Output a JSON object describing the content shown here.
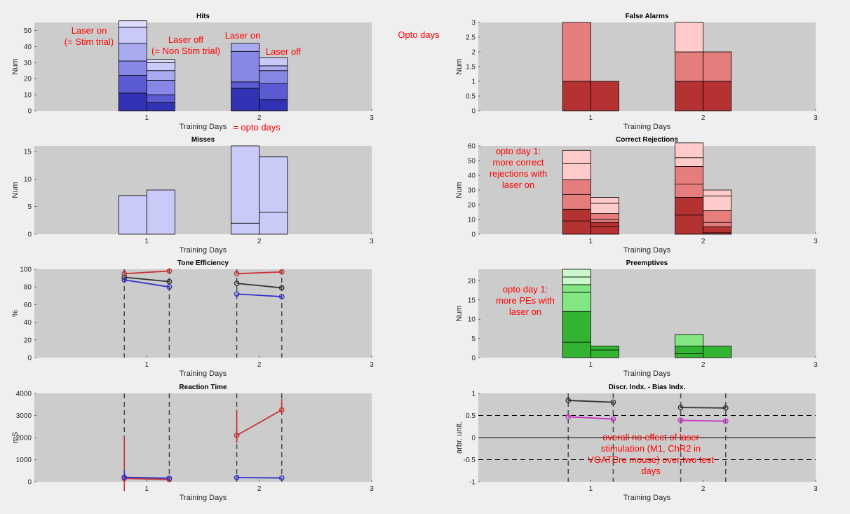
{
  "chart_data": [
    {
      "type": "bar",
      "id": "hits",
      "title": "Hits",
      "xlabel": "Training Days",
      "ylabel": "Num",
      "xlim": [
        0,
        3
      ],
      "ylim": [
        0,
        55
      ],
      "xticks": [
        1,
        2,
        3
      ],
      "yticks": [
        0,
        10,
        20,
        30,
        40,
        50
      ],
      "palette": [
        "#3232b4",
        "#5a5ad2",
        "#8787e6",
        "#aaaaf0",
        "#cacaf8",
        "#dedefc"
      ],
      "bars": [
        {
          "x": 0.875,
          "stack": [
            11,
            11,
            9,
            11,
            10,
            4
          ]
        },
        {
          "x": 1.125,
          "stack": [
            5,
            5,
            9,
            6,
            5,
            2
          ]
        },
        {
          "x": 1.875,
          "stack": [
            14,
            4,
            19,
            5
          ]
        },
        {
          "x": 2.125,
          "stack": [
            7,
            10,
            8,
            3,
            5
          ]
        }
      ]
    },
    {
      "type": "bar",
      "id": "false-alarms",
      "title": "False Alarms",
      "xlabel": "Training Days",
      "ylabel": "Num",
      "xlim": [
        0,
        3
      ],
      "ylim": [
        0,
        3
      ],
      "xticks": [
        1,
        2,
        3
      ],
      "yticks": [
        0,
        0.5,
        1,
        1.5,
        2,
        2.5,
        3
      ],
      "palette": [
        "#b43232",
        "#e67d7d",
        "#ffcaca"
      ],
      "bars": [
        {
          "x": 0.875,
          "stack": [
            1,
            2
          ]
        },
        {
          "x": 1.125,
          "stack": [
            1
          ]
        },
        {
          "x": 1.875,
          "stack": [
            1,
            1,
            1
          ]
        },
        {
          "x": 2.125,
          "stack": [
            1,
            1
          ]
        }
      ]
    },
    {
      "type": "bar",
      "id": "misses",
      "title": "Misses",
      "xlabel": "Training Days",
      "ylabel": "Num",
      "xlim": [
        0,
        3
      ],
      "ylim": [
        0,
        16
      ],
      "xticks": [
        1,
        2,
        3
      ],
      "yticks": [
        0,
        5,
        10,
        15
      ],
      "palette": [
        "#cacaf8",
        "#cacaf8"
      ],
      "bars": [
        {
          "x": 0.875,
          "stack": [
            7
          ]
        },
        {
          "x": 1.125,
          "stack": [
            8
          ]
        },
        {
          "x": 1.875,
          "stack": [
            2,
            14
          ]
        },
        {
          "x": 2.125,
          "stack": [
            4,
            10
          ]
        }
      ]
    },
    {
      "type": "bar",
      "id": "correct-rejections",
      "title": "Correct Rejections",
      "xlabel": "Training Days",
      "ylabel": "Num",
      "xlim": [
        0,
        3
      ],
      "ylim": [
        0,
        60
      ],
      "xticks": [
        1,
        2,
        3
      ],
      "yticks": [
        0,
        10,
        20,
        30,
        40,
        50,
        60
      ],
      "palette": [
        "#b43232",
        "#b43232",
        "#e67d7d",
        "#e67d7d",
        "#ffcaca",
        "#ffcaca"
      ],
      "bars": [
        {
          "x": 0.875,
          "stack": [
            9,
            8,
            10,
            10,
            11,
            9
          ]
        },
        {
          "x": 1.125,
          "stack": [
            5,
            3,
            2,
            4,
            7,
            4
          ]
        },
        {
          "x": 1.875,
          "stack": [
            13,
            12,
            9,
            12,
            6,
            10
          ]
        },
        {
          "x": 2.125,
          "stack": [
            1,
            4,
            3,
            8,
            10,
            4
          ]
        }
      ]
    },
    {
      "type": "line",
      "id": "tone-efficiency",
      "title": "Tone Efficiency",
      "xlabel": "Training Days",
      "ylabel": "%",
      "xlim": [
        0,
        3
      ],
      "ylim": [
        0,
        100
      ],
      "xticks": [
        1,
        2,
        3
      ],
      "yticks": [
        0,
        20,
        40,
        60,
        80,
        100
      ],
      "vlines": [
        0.8,
        1.2,
        1.8,
        2.2
      ],
      "series": [
        {
          "color": "#c83232",
          "segments": [
            {
              "x": [
                0.8,
                1.2
              ],
              "y": [
                95,
                98
              ]
            },
            {
              "x": [
                1.8,
                2.2
              ],
              "y": [
                95,
                97
              ]
            }
          ]
        },
        {
          "color": "#323232",
          "segments": [
            {
              "x": [
                0.8,
                1.2
              ],
              "y": [
                91,
                86
              ]
            },
            {
              "x": [
                1.8,
                2.2
              ],
              "y": [
                84,
                79
              ]
            }
          ]
        },
        {
          "color": "#3232c8",
          "segments": [
            {
              "x": [
                0.8,
                1.2
              ],
              "y": [
                88,
                80
              ]
            },
            {
              "x": [
                1.8,
                2.2
              ],
              "y": [
                72,
                69
              ]
            }
          ]
        }
      ]
    },
    {
      "type": "bar",
      "id": "preemptives",
      "title": "Preemptives",
      "xlabel": "Training Days",
      "ylabel": "Num",
      "xlim": [
        0,
        3
      ],
      "ylim": [
        0,
        23
      ],
      "xticks": [
        1,
        2,
        3
      ],
      "yticks": [
        0,
        5,
        10,
        15,
        20
      ],
      "palette": [
        "#32b432",
        "#32b432",
        "#82e682",
        "#82e682",
        "#caf8ca",
        "#caf8ca"
      ],
      "bars": [
        {
          "x": 0.875,
          "stack": [
            4,
            8,
            5,
            2,
            2,
            2
          ]
        },
        {
          "x": 1.125,
          "stack": [
            2,
            1
          ]
        },
        {
          "x": 1.875,
          "stack": [
            1,
            2,
            3
          ]
        },
        {
          "x": 2.125,
          "stack": [
            3
          ]
        }
      ]
    },
    {
      "type": "line",
      "id": "reaction-time",
      "title": "Reaction Time",
      "xlabel": "Training Days",
      "ylabel": "mS",
      "xlim": [
        0,
        3
      ],
      "ylim": [
        0,
        4000
      ],
      "xticks": [
        1,
        2,
        3
      ],
      "yticks": [
        0,
        1000,
        2000,
        3000,
        4000
      ],
      "vlines": [
        0.8,
        1.2,
        1.8,
        2.2
      ],
      "series": [
        {
          "color": "#c83232",
          "segments": [
            {
              "x": [
                0.8,
                1.2
              ],
              "y": [
                150,
                100
              ],
              "err": [
                1900,
                0
              ]
            },
            {
              "x": [
                1.8,
                2.2
              ],
              "y": [
                2100,
                3250
              ],
              "err": [
                1150,
                500
              ]
            }
          ]
        },
        {
          "color": "#3232c8",
          "segments": [
            {
              "x": [
                0.8,
                1.2
              ],
              "y": [
                200,
                160
              ],
              "err": [
                300,
                50
              ]
            },
            {
              "x": [
                1.8,
                2.2
              ],
              "y": [
                190,
                170
              ],
              "err": [
                100,
                30
              ]
            }
          ]
        }
      ]
    },
    {
      "type": "line",
      "id": "discr-bias",
      "title": "Discr. Indx. - Bias Indx.",
      "xlabel": "Training Days",
      "ylabel": "arbr. unit.",
      "xlim": [
        0,
        3
      ],
      "ylim": [
        -1,
        1
      ],
      "xticks": [
        1,
        2,
        3
      ],
      "yticks": [
        -1,
        -0.5,
        0,
        0.5,
        1
      ],
      "vlines": [
        0.8,
        1.2,
        1.8,
        2.2
      ],
      "hlines": [
        {
          "y": 0.5,
          "style": "dashed"
        },
        {
          "y": -0.5,
          "style": "dashed"
        },
        {
          "y": 0,
          "style": "solid"
        }
      ],
      "series": [
        {
          "color": "#323232",
          "segments": [
            {
              "x": [
                0.8,
                1.2
              ],
              "y": [
                0.84,
                0.8
              ],
              "err": [
                0.07,
                0.02
              ]
            },
            {
              "x": [
                1.8,
                2.2
              ],
              "y": [
                0.68,
                0.67
              ],
              "err": [
                0.05,
                0.03
              ]
            }
          ]
        },
        {
          "color": "#c832c8",
          "segments": [
            {
              "x": [
                0.8,
                1.2
              ],
              "y": [
                0.47,
                0.42
              ],
              "err": [
                0.05,
                0.02
              ]
            },
            {
              "x": [
                1.8,
                2.2
              ],
              "y": [
                0.39,
                0.37
              ],
              "err": [
                0.02,
                0.02
              ]
            }
          ]
        }
      ]
    }
  ],
  "annotations": [
    {
      "panel": "hits",
      "lines": [
        "Laser on",
        "(= Stim trial)"
      ]
    },
    {
      "panel": "hits",
      "lines": [
        "Laser off",
        "(= Non Stim trial)"
      ]
    },
    {
      "panel": "hits",
      "lines": [
        "Laser on"
      ]
    },
    {
      "panel": "hits",
      "lines": [
        "Laser off"
      ]
    },
    {
      "panel": "hits",
      "lines": [
        "= opto days"
      ]
    },
    {
      "panel": "figure",
      "lines": [
        "Opto days"
      ]
    },
    {
      "panel": "correct-rejections",
      "lines": [
        "opto day 1:",
        "more correct",
        "rejections with",
        "laser on"
      ]
    },
    {
      "panel": "preemptives",
      "lines": [
        "opto day 1:",
        "more PEs with",
        "laser on"
      ]
    },
    {
      "panel": "discr-bias",
      "lines": [
        "overall no effect of laser",
        "stimulation (M1, ChR2 in",
        "VGATCre mouse) over two test",
        "days"
      ]
    }
  ]
}
